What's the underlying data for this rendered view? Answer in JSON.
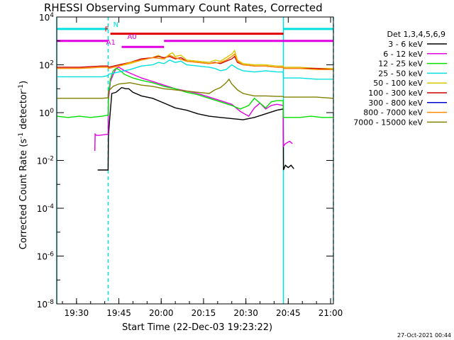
{
  "chart_data": {
    "type": "line",
    "title": "RHESSI Observing Summary Count Rates, Corrected",
    "xlabel": "Start Time (22-Dec-03 19:23:22)",
    "ylabel_main": "Corrected Count Rate (s",
    "ylabel_sup1": "-1",
    "ylabel_mid": " detector",
    "ylabel_sup2": "-1",
    "ylabel_end": ")",
    "x_range_minutes": [
      0,
      98
    ],
    "y_scale": "log",
    "y_range": [
      1e-08,
      10000.0
    ],
    "x_ticks": [
      {
        "t": 7,
        "label": "19:30"
      },
      {
        "t": 22,
        "label": "19:45"
      },
      {
        "t": 37,
        "label": "20:00"
      },
      {
        "t": 52,
        "label": "20:15"
      },
      {
        "t": 67,
        "label": "20:30"
      },
      {
        "t": 82,
        "label": "20:45"
      },
      {
        "t": 97,
        "label": "21:00"
      }
    ],
    "y_ticks": [
      {
        "exp": 4,
        "base": "10",
        "sup": "4"
      },
      {
        "exp": 2,
        "base": "10",
        "sup": "2"
      },
      {
        "exp": 0,
        "base": "10",
        "sup": "0"
      },
      {
        "exp": -2,
        "base": "10",
        "sup": "-2"
      },
      {
        "exp": -4,
        "base": "10",
        "sup": "-4"
      },
      {
        "exp": -6,
        "base": "10",
        "sup": "-6"
      },
      {
        "exp": -8,
        "base": "10",
        "sup": "-8"
      }
    ],
    "legend_title": "Det 1,3,4,5,6,9",
    "series": [
      {
        "name": "3 - 6 keV",
        "color": "#000000",
        "points": [
          [
            14.5,
            -2.4
          ],
          [
            18.2,
            -2.4
          ],
          [
            18.3,
            -1.0
          ],
          [
            18.8,
            -0.2
          ],
          [
            19.5,
            0.8
          ],
          [
            21,
            0.85
          ],
          [
            23,
            1.05
          ],
          [
            24.5,
            1.0
          ],
          [
            25.5,
            1.0
          ],
          [
            27,
            0.85
          ],
          [
            30,
            0.7
          ],
          [
            34,
            0.6
          ],
          [
            38,
            0.4
          ],
          [
            42,
            0.2
          ],
          [
            46,
            0.1
          ],
          [
            50,
            -0.05
          ],
          [
            54,
            -0.15
          ],
          [
            58,
            -0.2
          ],
          [
            62,
            -0.25
          ],
          [
            66,
            -0.3
          ],
          [
            70,
            -0.2
          ],
          [
            74,
            -0.05
          ],
          [
            78,
            0.1
          ],
          [
            80.2,
            0.15
          ],
          [
            80.3,
            -2.4
          ],
          [
            81,
            -2.2
          ],
          [
            82,
            -2.3
          ],
          [
            83,
            -2.2
          ],
          [
            84,
            -2.35
          ]
        ]
      },
      {
        "name": "6 - 12 keV",
        "color": "#e000e0",
        "points": [
          [
            13.5,
            -1.6
          ],
          [
            13.6,
            -0.9
          ],
          [
            14,
            -0.95
          ],
          [
            15,
            -0.95
          ],
          [
            18.2,
            -0.9
          ],
          [
            18.3,
            0.5
          ],
          [
            19,
            1.3
          ],
          [
            20,
            1.6
          ],
          [
            21,
            1.85
          ],
          [
            22,
            1.9
          ],
          [
            24,
            1.75
          ],
          [
            27,
            1.6
          ],
          [
            30,
            1.45
          ],
          [
            34,
            1.3
          ],
          [
            38,
            1.15
          ],
          [
            42,
            1.0
          ],
          [
            46,
            0.9
          ],
          [
            50,
            0.8
          ],
          [
            54,
            0.65
          ],
          [
            58,
            0.5
          ],
          [
            62,
            0.35
          ],
          [
            65,
            0.05
          ],
          [
            68,
            -0.15
          ],
          [
            70,
            0.2
          ],
          [
            72,
            0.4
          ],
          [
            74,
            0.15
          ],
          [
            76,
            0.3
          ],
          [
            78,
            0.35
          ],
          [
            80.2,
            0.3
          ],
          [
            80.3,
            -1.4
          ],
          [
            81,
            -1.3
          ],
          [
            82.5,
            -1.2
          ],
          [
            83.5,
            -1.3
          ]
        ]
      },
      {
        "name": "12 - 25 keV",
        "color": "#00e000",
        "points": [
          [
            0,
            -0.15
          ],
          [
            4,
            -0.2
          ],
          [
            8,
            -0.15
          ],
          [
            12,
            -0.2
          ],
          [
            16,
            -0.15
          ],
          [
            18.2,
            -0.1
          ],
          [
            18.3,
            0.8
          ],
          [
            19,
            1.4
          ],
          [
            20,
            1.75
          ],
          [
            21,
            1.85
          ],
          [
            22,
            1.8
          ],
          [
            24,
            1.6
          ],
          [
            27,
            1.45
          ],
          [
            30,
            1.35
          ],
          [
            34,
            1.25
          ],
          [
            38,
            1.1
          ],
          [
            42,
            1.0
          ],
          [
            46,
            0.85
          ],
          [
            50,
            0.75
          ],
          [
            54,
            0.6
          ],
          [
            58,
            0.45
          ],
          [
            62,
            0.3
          ],
          [
            65,
            0.15
          ],
          [
            68,
            0.3
          ],
          [
            70,
            0.6
          ],
          [
            72,
            0.4
          ],
          [
            74,
            0.2
          ],
          [
            76,
            0.45
          ],
          [
            78,
            0.5
          ],
          [
            80.2,
            0.5
          ],
          [
            80.3,
            -0.2
          ],
          [
            86,
            -0.2
          ],
          [
            90,
            -0.15
          ],
          [
            94,
            -0.2
          ],
          [
            98,
            -0.2
          ]
        ]
      },
      {
        "name": "25 - 50 keV",
        "color": "#00e0e0",
        "points": [
          [
            0,
            1.5
          ],
          [
            8,
            1.5
          ],
          [
            16,
            1.5
          ],
          [
            18.2,
            1.55
          ],
          [
            18.3,
            1.6
          ],
          [
            22,
            1.7
          ],
          [
            26,
            1.8
          ],
          [
            30,
            1.95
          ],
          [
            34,
            2.0
          ],
          [
            36,
            2.1
          ],
          [
            38,
            2.05
          ],
          [
            40,
            2.2
          ],
          [
            42,
            2.1
          ],
          [
            44,
            2.15
          ],
          [
            46,
            2.0
          ],
          [
            50,
            1.95
          ],
          [
            54,
            1.9
          ],
          [
            56,
            1.85
          ],
          [
            58,
            1.75
          ],
          [
            60,
            1.8
          ],
          [
            62,
            2.0
          ],
          [
            64,
            1.85
          ],
          [
            66,
            1.75
          ],
          [
            70,
            1.7
          ],
          [
            74,
            1.75
          ],
          [
            78,
            1.7
          ],
          [
            80.2,
            1.7
          ],
          [
            80.3,
            1.45
          ],
          [
            86,
            1.45
          ],
          [
            92,
            1.4
          ],
          [
            98,
            1.4
          ]
        ]
      },
      {
        "name": "50 - 100 keV",
        "color": "#d8c800",
        "points": [
          [
            0,
            1.85
          ],
          [
            8,
            1.85
          ],
          [
            16,
            1.9
          ],
          [
            18.2,
            1.9
          ],
          [
            18.3,
            1.85
          ],
          [
            22,
            1.95
          ],
          [
            26,
            2.05
          ],
          [
            30,
            2.2
          ],
          [
            34,
            2.3
          ],
          [
            36,
            2.4
          ],
          [
            38,
            2.25
          ],
          [
            40,
            2.45
          ],
          [
            41,
            2.5
          ],
          [
            42,
            2.35
          ],
          [
            44,
            2.4
          ],
          [
            46,
            2.2
          ],
          [
            50,
            2.15
          ],
          [
            54,
            2.1
          ],
          [
            56,
            2.2
          ],
          [
            58,
            2.15
          ],
          [
            60,
            2.3
          ],
          [
            62,
            2.45
          ],
          [
            63,
            2.6
          ],
          [
            64,
            2.2
          ],
          [
            66,
            2.05
          ],
          [
            70,
            2.0
          ],
          [
            74,
            2.0
          ],
          [
            78,
            1.95
          ],
          [
            80.2,
            1.95
          ],
          [
            80.3,
            1.9
          ],
          [
            86,
            1.9
          ],
          [
            92,
            1.85
          ],
          [
            98,
            1.85
          ]
        ]
      },
      {
        "name": "100 - 300 keV",
        "color": "#cc0000",
        "points": [
          [
            0,
            1.9
          ],
          [
            8,
            1.9
          ],
          [
            16,
            1.95
          ],
          [
            18.2,
            1.95
          ],
          [
            18.3,
            1.9
          ],
          [
            22,
            2.0
          ],
          [
            26,
            2.1
          ],
          [
            30,
            2.25
          ],
          [
            34,
            2.3
          ],
          [
            36,
            2.35
          ],
          [
            38,
            2.3
          ],
          [
            40,
            2.35
          ],
          [
            42,
            2.25
          ],
          [
            44,
            2.3
          ],
          [
            46,
            2.15
          ],
          [
            50,
            2.1
          ],
          [
            54,
            2.05
          ],
          [
            56,
            2.1
          ],
          [
            58,
            2.05
          ],
          [
            60,
            2.15
          ],
          [
            62,
            2.25
          ],
          [
            63,
            2.35
          ],
          [
            64,
            2.1
          ],
          [
            66,
            2.0
          ],
          [
            70,
            1.95
          ],
          [
            74,
            1.95
          ],
          [
            78,
            1.9
          ],
          [
            80.2,
            1.9
          ],
          [
            80.3,
            1.85
          ],
          [
            86,
            1.85
          ],
          [
            92,
            1.85
          ],
          [
            98,
            1.8
          ]
        ]
      },
      {
        "name": "300 - 800 keV",
        "color": "#0000cc",
        "points": []
      },
      {
        "name": "800 - 7000 keV",
        "color": "#ff8c00",
        "points": [
          [
            0,
            1.85
          ],
          [
            8,
            1.85
          ],
          [
            16,
            1.9
          ],
          [
            18.2,
            1.9
          ],
          [
            18.3,
            1.85
          ],
          [
            22,
            1.95
          ],
          [
            26,
            2.1
          ],
          [
            30,
            2.2
          ],
          [
            34,
            2.3
          ],
          [
            38,
            2.25
          ],
          [
            40,
            2.4
          ],
          [
            42,
            2.3
          ],
          [
            46,
            2.15
          ],
          [
            50,
            2.1
          ],
          [
            54,
            2.05
          ],
          [
            58,
            2.1
          ],
          [
            60,
            2.2
          ],
          [
            62,
            2.35
          ],
          [
            63,
            2.45
          ],
          [
            64,
            2.15
          ],
          [
            66,
            2.0
          ],
          [
            70,
            1.95
          ],
          [
            74,
            1.95
          ],
          [
            78,
            1.9
          ],
          [
            80.2,
            1.9
          ],
          [
            80.3,
            1.85
          ],
          [
            86,
            1.85
          ],
          [
            92,
            1.8
          ],
          [
            98,
            1.8
          ]
        ]
      },
      {
        "name": "7000 - 15000 keV",
        "color": "#808000",
        "points": [
          [
            0,
            0.6
          ],
          [
            8,
            0.6
          ],
          [
            16,
            0.6
          ],
          [
            18.2,
            0.62
          ],
          [
            18.3,
            0.9
          ],
          [
            20,
            1.1
          ],
          [
            22,
            1.2
          ],
          [
            26,
            1.25
          ],
          [
            30,
            1.15
          ],
          [
            34,
            1.1
          ],
          [
            38,
            1.0
          ],
          [
            42,
            0.95
          ],
          [
            46,
            0.9
          ],
          [
            50,
            0.85
          ],
          [
            54,
            0.8
          ],
          [
            56,
            0.95
          ],
          [
            58,
            1.05
          ],
          [
            60,
            1.25
          ],
          [
            61,
            1.4
          ],
          [
            62,
            1.2
          ],
          [
            64,
            0.95
          ],
          [
            66,
            0.8
          ],
          [
            70,
            0.7
          ],
          [
            74,
            0.7
          ],
          [
            78,
            0.68
          ],
          [
            80.2,
            0.68
          ],
          [
            80.3,
            0.65
          ],
          [
            86,
            0.65
          ],
          [
            92,
            0.65
          ],
          [
            98,
            0.6
          ]
        ]
      }
    ],
    "flags": [
      {
        "label": "N",
        "color": "#00e0e0",
        "y_exp": 3.5,
        "segments": [
          [
            0,
            18.2
          ],
          [
            80.3,
            98
          ]
        ],
        "label_at": 20
      },
      {
        "label": "F",
        "color": "#e00000",
        "y_exp": 3.3,
        "segments": [
          [
            19,
            80.3
          ]
        ],
        "label_at": 17
      },
      {
        "label": "",
        "color": "#e000e0",
        "y_exp": 3.0,
        "segments": [
          [
            0,
            18.2
          ],
          [
            38,
            98
          ]
        ],
        "label_at": null
      },
      {
        "label": "A1",
        "color": "#e000e0",
        "y_exp": 2.75,
        "segments": [
          [
            23,
            38
          ]
        ],
        "label_at": 17.5
      },
      {
        "label": "A0",
        "color": "#e000e0",
        "y_exp": 3.0,
        "segments": [],
        "label_at": 25
      }
    ],
    "vertical_lines": [
      {
        "t": 0,
        "color": "#00e0e0",
        "style": "solid"
      },
      {
        "t": 18.2,
        "color": "#00e0e0",
        "style": "dashed"
      },
      {
        "t": 80.3,
        "color": "#00e0e0",
        "style": "solid"
      },
      {
        "t": 98,
        "color": "#00e0e0",
        "style": "dashed"
      }
    ]
  },
  "timestamp": "27-Oct-2021 00:44"
}
